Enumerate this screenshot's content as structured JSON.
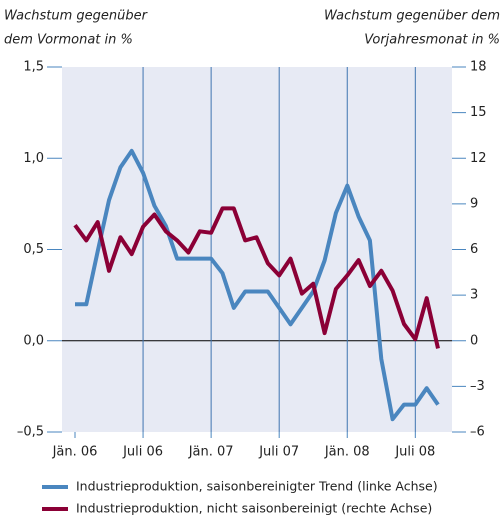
{
  "chart_data": {
    "type": "line",
    "y_label": [
      "Wachstum gegenüber",
      "dem Vormonat in %"
    ],
    "y2_label": [
      "Wachstum gegenüber dem",
      "Vorjahresmonat in %"
    ],
    "categories": [
      "Jän. 06",
      null,
      null,
      null,
      null,
      null,
      "Juli 06",
      null,
      null,
      null,
      null,
      null,
      "Jän. 07",
      null,
      null,
      null,
      null,
      null,
      "Juli 07",
      null,
      null,
      null,
      null,
      null,
      "Jän. 08",
      null,
      null,
      null,
      null,
      null,
      "Juli 08",
      null,
      null
    ],
    "ylim": [
      -0.5,
      1.5
    ],
    "yticks": [
      {
        "value": -0.5,
        "label": "–0,5"
      },
      {
        "value": 0,
        "label": "0,0"
      },
      {
        "value": 0.5,
        "label": "0,5"
      },
      {
        "value": 1,
        "label": "1,0"
      },
      {
        "value": 1.5,
        "label": "1,5"
      }
    ],
    "y2lim": [
      -6,
      18
    ],
    "y2ticks": [
      {
        "value": -6,
        "label": "–6"
      },
      {
        "value": -3,
        "label": "–3"
      },
      0,
      3,
      6,
      9,
      12,
      15,
      18
    ],
    "series": [
      {
        "name": "Industrieproduktion, saisonbereinigter Trend (linke Achse)",
        "color": "#4a86bf",
        "values": [
          0.2,
          0.2,
          0.49,
          0.77,
          0.95,
          1.04,
          0.92,
          0.74,
          0.63,
          0.45,
          0.45,
          0.45,
          0.45,
          0.37,
          0.18,
          0.27,
          0.27,
          0.27,
          0.18,
          0.09,
          0.18,
          0.27,
          0.44,
          0.7,
          0.85,
          0.68,
          0.55,
          -0.1,
          -0.43,
          -0.35,
          -0.35,
          -0.26,
          -0.35
        ]
      },
      {
        "name": "Industrieproduktion, nicht saisonbereinigt (rechte Achse)",
        "color": "#8b0036",
        "axis": "y2",
        "values": [
          7.6,
          6.6,
          7.8,
          4.6,
          6.8,
          5.7,
          7.5,
          8.3,
          7.2,
          6.6,
          5.8,
          7.2,
          7.1,
          8.7,
          8.7,
          6.6,
          6.8,
          5.1,
          4.3,
          5.4,
          3.1,
          3.75,
          0.5,
          3.4,
          4.3,
          5.3,
          3.6,
          4.6,
          3.3,
          1.1,
          0.1,
          2.8,
          -0.5
        ]
      }
    ]
  }
}
